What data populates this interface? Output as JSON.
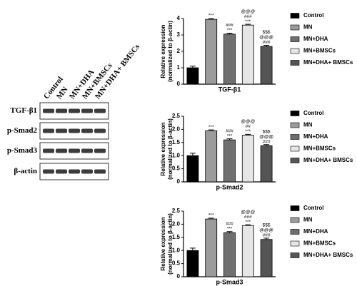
{
  "blot": {
    "lanes": [
      "Control",
      "MN",
      "MN+DHA",
      "MN+BMSCs",
      "MN+DHA+ BMSCs"
    ],
    "proteins": [
      "TGF-β1",
      "p-Smad2",
      "p-Smad3",
      "β-actin"
    ]
  },
  "chart_data": [
    {
      "type": "bar",
      "ylabel": [
        "Relative expression",
        "(normalized to β-actin)"
      ],
      "xlabel": "TGF-β1",
      "ylim": [
        0,
        4
      ],
      "yticks": [
        0,
        1,
        2,
        3,
        4
      ],
      "series": [
        {
          "name": "Control",
          "color": "#000000",
          "values": [
            1.0
          ],
          "errors": [
            0.1
          ],
          "annotations": []
        },
        {
          "name": "MN",
          "color": "#9b9b9b",
          "values": [
            3.95
          ],
          "errors": [
            0.05
          ],
          "annotations": [
            "***"
          ]
        },
        {
          "name": "MN+DHA",
          "color": "#6f6f6f",
          "values": [
            3.05
          ],
          "errors": [
            0.06
          ],
          "annotations": [
            "###",
            "***"
          ]
        },
        {
          "name": "MN+BMSCs",
          "color": "#e6e6e6",
          "values": [
            3.6
          ],
          "errors": [
            0.05
          ],
          "annotations": [
            "@@@",
            "###",
            "***"
          ]
        },
        {
          "name": "MN+DHA+ BMSCs",
          "color": "#555555",
          "values": [
            2.3
          ],
          "errors": [
            0.07
          ],
          "annotations": [
            "$$$",
            "@@@",
            "###"
          ]
        }
      ]
    },
    {
      "type": "bar",
      "ylabel": [
        "Relative expression",
        "(normalized to β-actin)"
      ],
      "xlabel": "p-Smad2",
      "ylim": [
        0,
        2.5
      ],
      "yticks": [
        0,
        0.5,
        {
          "value": 1,
          "label": "1.0"
        },
        1.5,
        {
          "value": 2,
          "label": "2.0"
        },
        2.5
      ],
      "series": [
        {
          "name": "Control",
          "color": "#000000",
          "values": [
            1.0
          ],
          "errors": [
            0.09
          ],
          "annotations": []
        },
        {
          "name": "MN",
          "color": "#9b9b9b",
          "values": [
            1.95
          ],
          "errors": [
            0.03
          ],
          "annotations": [
            "***"
          ]
        },
        {
          "name": "MN+DHA",
          "color": "#6f6f6f",
          "values": [
            1.6
          ],
          "errors": [
            0.04
          ],
          "annotations": [
            "###",
            "***"
          ]
        },
        {
          "name": "MN+BMSCs",
          "color": "#e6e6e6",
          "values": [
            1.78
          ],
          "errors": [
            0.03
          ],
          "annotations": [
            "@@@",
            "##",
            "***"
          ]
        },
        {
          "name": "MN+DHA+ BMSCs",
          "color": "#555555",
          "values": [
            1.38
          ],
          "errors": [
            0.04
          ],
          "annotations": [
            "$$$",
            "@@@",
            "###"
          ]
        }
      ]
    },
    {
      "type": "bar",
      "ylabel": [
        "Relative expression",
        "(normalized to β-actin)"
      ],
      "xlabel": "p-Smad3",
      "ylim": [
        0,
        2.5
      ],
      "yticks": [
        0,
        0.5,
        {
          "value": 1,
          "label": "1.0"
        },
        1.5,
        {
          "value": 2,
          "label": "2.0"
        },
        2.5
      ],
      "series": [
        {
          "name": "Control",
          "color": "#000000",
          "values": [
            1.0
          ],
          "errors": [
            0.09
          ],
          "annotations": []
        },
        {
          "name": "MN",
          "color": "#9b9b9b",
          "values": [
            2.2
          ],
          "errors": [
            0.03
          ],
          "annotations": [
            "***"
          ]
        },
        {
          "name": "MN+DHA",
          "color": "#6f6f6f",
          "values": [
            1.68
          ],
          "errors": [
            0.04
          ],
          "annotations": [
            "###",
            "***"
          ]
        },
        {
          "name": "MN+BMSCs",
          "color": "#e6e6e6",
          "values": [
            1.95
          ],
          "errors": [
            0.03
          ],
          "annotations": [
            "@@@",
            "###",
            "***"
          ]
        },
        {
          "name": "MN+DHA+ BMSCs",
          "color": "#555555",
          "values": [
            1.42
          ],
          "errors": [
            0.05
          ],
          "annotations": [
            "$$$",
            "@@@",
            "###"
          ]
        }
      ]
    }
  ]
}
